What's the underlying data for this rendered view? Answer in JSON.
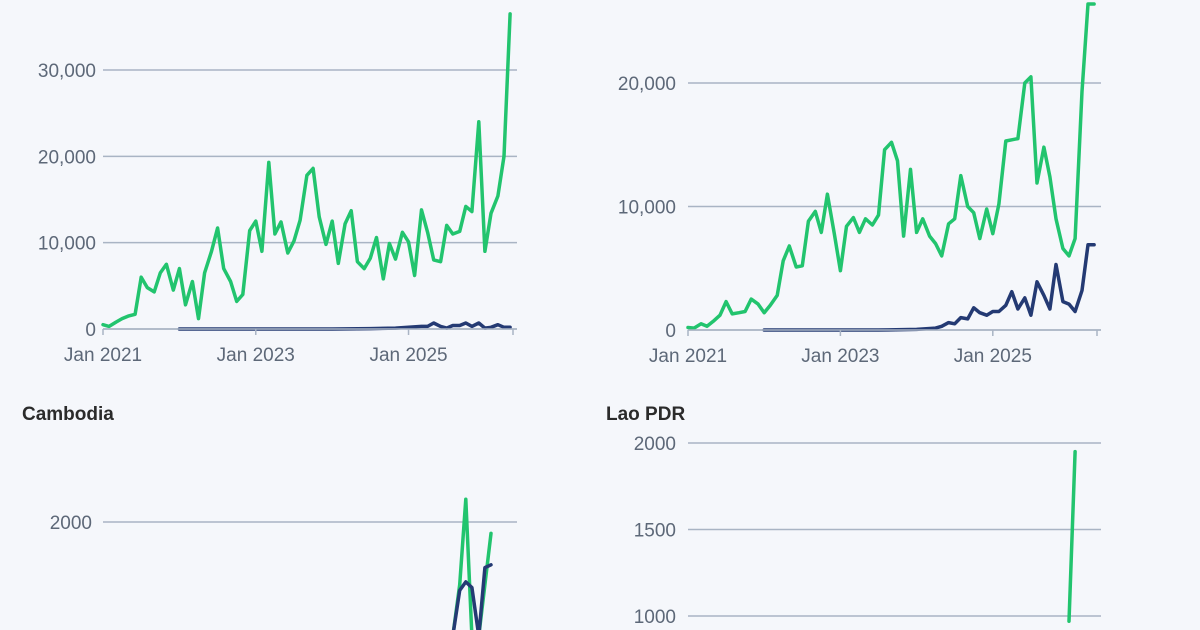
{
  "colors": {
    "green": "#22c46e",
    "navy": "#243a73",
    "grid": "#a9b4c4"
  },
  "chart_data": [
    {
      "type": "line",
      "title": "",
      "ylim": [
        0,
        37000
      ],
      "yticks": [
        0,
        10000,
        20000,
        30000
      ],
      "ytick_labels": [
        "0",
        "10,000",
        "20,000",
        "30,000"
      ],
      "xlim": [
        2021.0,
        2026.42
      ],
      "xtick_labels": [
        "Jan 2021",
        "Jan 2023",
        "Jan 2025"
      ],
      "xticks": [
        2021.0,
        2023.0,
        2025.0
      ],
      "grid": true,
      "series": [
        {
          "color": "green",
          "x": [
            2021.0,
            2021.08,
            2021.17,
            2021.25,
            2021.33,
            2021.42,
            2021.5,
            2021.58,
            2021.67,
            2021.75,
            2021.83,
            2021.92,
            2022.0,
            2022.08,
            2022.17,
            2022.25,
            2022.33,
            2022.42,
            2022.5,
            2022.58,
            2022.67,
            2022.75,
            2022.83,
            2022.92,
            2023.0,
            2023.08,
            2023.17,
            2023.25,
            2023.33,
            2023.42,
            2023.5,
            2023.58,
            2023.67,
            2023.75,
            2023.83,
            2023.92,
            2024.0,
            2024.08,
            2024.17,
            2024.25,
            2024.33,
            2024.42,
            2024.5,
            2024.58,
            2024.67,
            2024.75,
            2024.83,
            2024.92,
            2025.0,
            2025.08,
            2025.17,
            2025.25,
            2025.33,
            2025.42,
            2025.5,
            2025.58,
            2025.67,
            2025.75,
            2025.83,
            2025.92,
            2026.0,
            2026.08,
            2026.17,
            2026.25,
            2026.33
          ],
          "y": [
            500,
            300,
            800,
            1200,
            1500,
            1700,
            6000,
            4800,
            4300,
            6500,
            7500,
            4500,
            7000,
            2800,
            5500,
            1200,
            6500,
            9000,
            11700,
            7000,
            5500,
            3200,
            4000,
            11400,
            12500,
            9000,
            19300,
            11000,
            12400,
            8800,
            10200,
            12600,
            17800,
            18600,
            13000,
            9800,
            12500,
            7600,
            12200,
            13700,
            7800,
            7000,
            8200,
            10600,
            5800,
            9900,
            8100,
            11200,
            10100,
            6200,
            13800,
            11200,
            8000,
            7800,
            12000,
            11000,
            11300,
            14200,
            13600,
            24000,
            9000,
            13400,
            15400,
            20000,
            36500
          ]
        },
        {
          "color": "navy",
          "x": [
            2022.0,
            2022.5,
            2023.0,
            2023.5,
            2024.0,
            2024.5,
            2024.83,
            2025.0,
            2025.17,
            2025.25,
            2025.33,
            2025.42,
            2025.5,
            2025.58,
            2025.67,
            2025.75,
            2025.83,
            2025.92,
            2026.0,
            2026.08,
            2026.17,
            2026.25,
            2026.33
          ],
          "y": [
            0,
            0,
            0,
            0,
            0,
            50,
            100,
            200,
            300,
            300,
            700,
            300,
            100,
            400,
            400,
            700,
            300,
            700,
            100,
            200,
            500,
            200,
            200
          ]
        }
      ]
    },
    {
      "type": "line",
      "title": "",
      "ylim": [
        0,
        26500
      ],
      "yticks": [
        0,
        10000,
        20000
      ],
      "ytick_labels": [
        "0",
        "10,000",
        "20,000"
      ],
      "xlim": [
        2021.0,
        2026.42
      ],
      "xtick_labels": [
        "Jan 2021",
        "Jan 2023",
        "Jan 2025"
      ],
      "xticks": [
        2021.0,
        2023.0,
        2025.0
      ],
      "grid": true,
      "series": [
        {
          "color": "green",
          "x": [
            2021.0,
            2021.08,
            2021.17,
            2021.25,
            2021.33,
            2021.42,
            2021.5,
            2021.58,
            2021.67,
            2021.75,
            2021.83,
            2021.92,
            2022.0,
            2022.08,
            2022.17,
            2022.25,
            2022.33,
            2022.42,
            2022.5,
            2022.58,
            2022.67,
            2022.75,
            2022.83,
            2022.92,
            2023.0,
            2023.08,
            2023.17,
            2023.25,
            2023.33,
            2023.42,
            2023.5,
            2023.58,
            2023.67,
            2023.75,
            2023.83,
            2023.92,
            2024.0,
            2024.08,
            2024.17,
            2024.25,
            2024.33,
            2024.42,
            2024.5,
            2024.58,
            2024.67,
            2024.75,
            2024.83,
            2024.92,
            2025.0,
            2025.08,
            2025.17,
            2025.25,
            2025.33,
            2025.42,
            2025.5,
            2025.58,
            2025.67,
            2025.75,
            2025.83,
            2025.92,
            2026.0,
            2026.08,
            2026.17,
            2026.25,
            2026.33
          ],
          "y": [
            200,
            150,
            500,
            300,
            700,
            1200,
            2300,
            1300,
            1400,
            1500,
            2500,
            2100,
            1400,
            2000,
            2800,
            5600,
            6800,
            5100,
            5200,
            8800,
            9600,
            7900,
            11000,
            7800,
            4800,
            8400,
            9100,
            7900,
            9000,
            8500,
            9300,
            14600,
            15200,
            13700,
            7600,
            13000,
            7900,
            9000,
            7600,
            7000,
            6000,
            8600,
            9000,
            12500,
            10000,
            9500,
            7400,
            9800,
            7800,
            10200,
            15300,
            15400,
            15500,
            20000,
            20500,
            11900,
            14800,
            12400,
            9000,
            6600,
            6000,
            7400,
            19300,
            26400,
            26400
          ]
        },
        {
          "color": "navy",
          "x": [
            2022.0,
            2022.5,
            2023.0,
            2023.5,
            2024.0,
            2024.25,
            2024.33,
            2024.42,
            2024.5,
            2024.58,
            2024.67,
            2024.75,
            2024.83,
            2024.92,
            2025.0,
            2025.08,
            2025.17,
            2025.25,
            2025.33,
            2025.42,
            2025.5,
            2025.58,
            2025.67,
            2025.75,
            2025.83,
            2025.92,
            2026.0,
            2026.08,
            2026.17,
            2026.25,
            2026.33
          ],
          "y": [
            0,
            0,
            0,
            0,
            50,
            150,
            300,
            600,
            500,
            1000,
            900,
            1800,
            1400,
            1200,
            1500,
            1500,
            2000,
            3100,
            1700,
            2600,
            1200,
            3900,
            2800,
            1700,
            5300,
            2300,
            2100,
            1500,
            3200,
            6900,
            6900
          ]
        }
      ]
    },
    {
      "type": "line",
      "title": "Cambodia",
      "ylim": [
        0,
        2600
      ],
      "yticks": [
        2000
      ],
      "ytick_labels": [
        "2000"
      ],
      "grid": true,
      "series": [
        {
          "color": "green",
          "x": [
            2024.67,
            2024.83,
            2025.0,
            2025.17,
            2025.33,
            2025.42,
            2025.5,
            2025.58,
            2025.67,
            2025.75,
            2025.83,
            2025.92,
            2026.0,
            2026.08
          ],
          "y": [
            0,
            0,
            0,
            0,
            0,
            0,
            0,
            0,
            900,
            2400,
            0,
            0,
            900,
            1800
          ]
        },
        {
          "color": "navy",
          "x": [
            2024.67,
            2024.83,
            2025.0,
            2025.17,
            2025.33,
            2025.42,
            2025.5,
            2025.58,
            2025.67,
            2025.75,
            2025.83,
            2025.92,
            2026.0,
            2026.08
          ],
          "y": [
            0,
            0,
            0,
            0,
            0,
            0,
            0,
            0,
            800,
            950,
            850,
            0,
            1200,
            1250
          ]
        }
      ]
    },
    {
      "type": "line",
      "title": "Lao PDR",
      "ylim": [
        800,
        2100
      ],
      "yticks": [
        1000,
        1500,
        2000
      ],
      "ytick_labels": [
        "1000",
        "1500",
        "2000"
      ],
      "grid": true,
      "series": [
        {
          "color": "green",
          "x": [
            2026.0,
            2026.08
          ],
          "y": [
            970,
            1950
          ]
        }
      ]
    }
  ]
}
